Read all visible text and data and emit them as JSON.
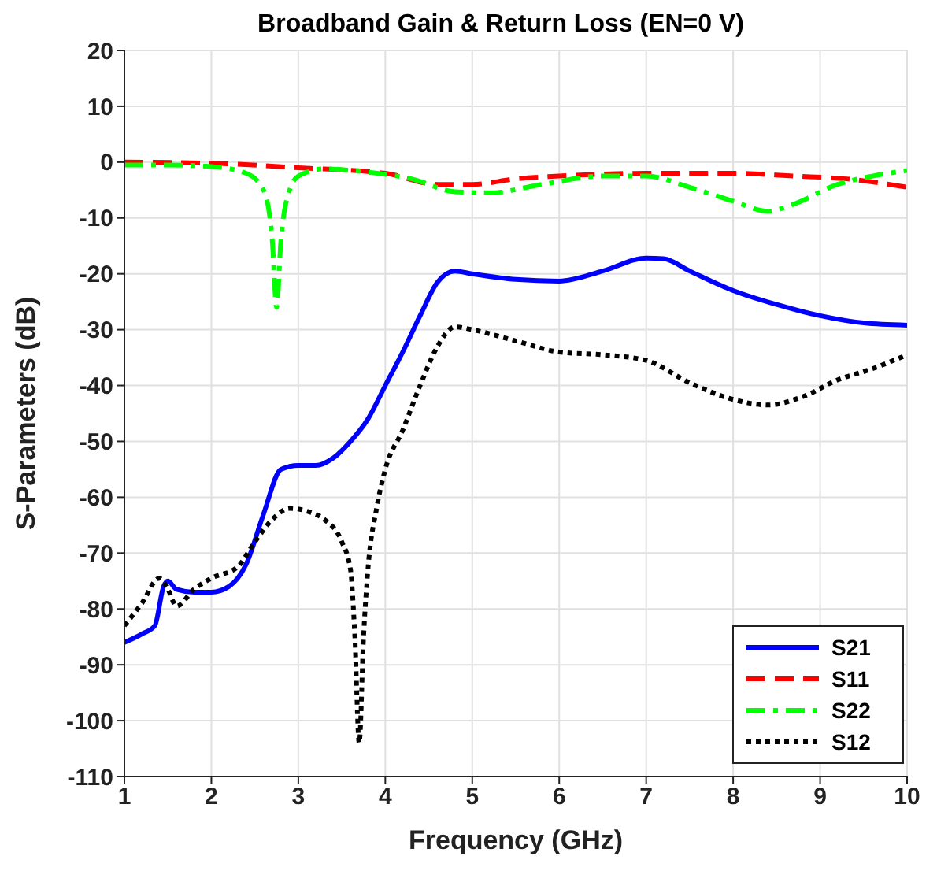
{
  "chart_data": {
    "type": "line",
    "title": "Broadband Gain & Return Loss (EN=0 V)",
    "xlabel": "Frequency (GHz)",
    "ylabel": "S-Parameters (dB)",
    "xlim": [
      1,
      10
    ],
    "xticks": [
      1,
      2,
      3,
      4,
      5,
      6,
      7,
      8,
      9,
      10
    ],
    "ylim": [
      -110,
      20
    ],
    "yticks": [
      -110,
      -100,
      -90,
      -80,
      -70,
      -60,
      -50,
      -40,
      -30,
      -20,
      -10,
      0,
      10,
      20
    ],
    "grid": true,
    "legend": "bottom right",
    "marker": "none",
    "series": [
      {
        "name": "S21",
        "color": "#0000ff",
        "line_style": "solid",
        "x": [
          1,
          1.2,
          1.35,
          1.45,
          1.5,
          1.6,
          1.8,
          2.0,
          2.2,
          2.4,
          2.6,
          2.8,
          3.0,
          3.2,
          3.4,
          3.6,
          3.8,
          4.0,
          4.2,
          4.4,
          4.6,
          4.8,
          5.0,
          5.5,
          6,
          6.5,
          7,
          7.2,
          7.5,
          8,
          8.5,
          9,
          9.5,
          10
        ],
        "values": [
          -86,
          -84.5,
          -83,
          -76,
          -75,
          -76.5,
          -77,
          -77,
          -76,
          -72,
          -63,
          -55,
          -54.3,
          -54.3,
          -53,
          -50,
          -46,
          -40,
          -34,
          -27.5,
          -21.5,
          -19.5,
          -20,
          -21,
          -21.3,
          -19.5,
          -17.2,
          -17.3,
          -19.5,
          -23,
          -25.5,
          -27.5,
          -28.8,
          -29.2
        ]
      },
      {
        "name": "S11",
        "color": "#ff0000",
        "line_style": "dashed",
        "x": [
          1,
          2,
          3,
          4,
          4.6,
          5,
          5.5,
          6,
          7,
          8,
          8.7,
          9.3,
          10
        ],
        "values": [
          0,
          -0.2,
          -1,
          -2,
          -4,
          -4,
          -3,
          -2.5,
          -2,
          -2,
          -2.5,
          -3,
          -4.5
        ]
      },
      {
        "name": "S22",
        "color": "#00ff00",
        "line_style": "dashdot",
        "x": [
          1,
          1.5,
          2.0,
          2.4,
          2.6,
          2.7,
          2.75,
          2.8,
          2.9,
          3.0,
          3.3,
          3.8,
          4.3,
          4.8,
          5.2,
          5.8,
          6.5,
          7,
          7.5,
          8,
          8.4,
          8.7,
          9.2,
          9.6,
          10
        ],
        "values": [
          -0.5,
          -0.5,
          -0.8,
          -2,
          -5,
          -14,
          -26,
          -14,
          -5,
          -2.5,
          -1.2,
          -1.8,
          -3,
          -5.3,
          -5.5,
          -4,
          -2.5,
          -2.5,
          -4.5,
          -7,
          -8.8,
          -7.5,
          -4,
          -2.5,
          -1.5
        ]
      },
      {
        "name": "S12",
        "color": "#000000",
        "line_style": "dotted",
        "x": [
          1,
          1.2,
          1.4,
          1.5,
          1.6,
          1.8,
          2.0,
          2.3,
          2.5,
          2.7,
          2.9,
          3.1,
          3.3,
          3.5,
          3.6,
          3.65,
          3.7,
          3.75,
          3.8,
          3.9,
          4.0,
          4.2,
          4.4,
          4.6,
          4.8,
          5.0,
          5.5,
          6,
          6.5,
          7,
          7.5,
          8,
          8.4,
          8.8,
          9.2,
          9.6,
          10
        ],
        "values": [
          -83,
          -79,
          -74.5,
          -76.5,
          -79.5,
          -76.5,
          -74.5,
          -72.5,
          -68,
          -64,
          -62,
          -62.5,
          -64,
          -68,
          -73,
          -85,
          -104,
          -85,
          -73,
          -62,
          -55,
          -48,
          -40,
          -33,
          -29.5,
          -30,
          -32,
          -34,
          -34.5,
          -35.5,
          -39.5,
          -42.5,
          -43.5,
          -42,
          -39,
          -37,
          -34.5
        ]
      }
    ]
  }
}
